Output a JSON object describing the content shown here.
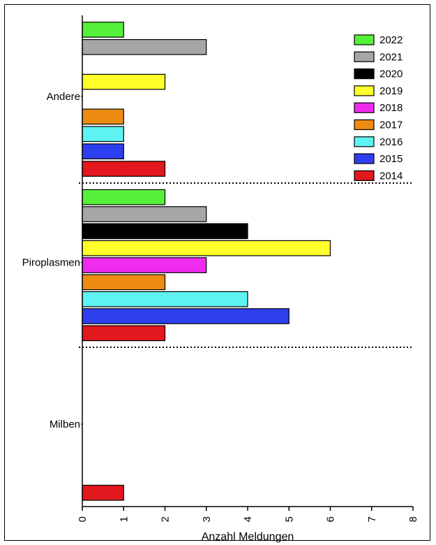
{
  "chart_data": {
    "type": "bar",
    "orientation": "horizontal",
    "title": "",
    "xlabel": "Anzahl Meldungen",
    "ylabel": "",
    "xlim": [
      0,
      8
    ],
    "xticks": [
      0,
      1,
      2,
      3,
      4,
      5,
      6,
      7,
      8
    ],
    "grid": false,
    "legend_position": "top-right",
    "categories": [
      "Andere",
      "Piroplasmen",
      "Milben"
    ],
    "series": [
      {
        "name": "2022",
        "color": "#55f03a",
        "values": [
          1,
          2,
          0
        ]
      },
      {
        "name": "2021",
        "color": "#a6a6a6",
        "values": [
          3,
          3,
          0
        ]
      },
      {
        "name": "2020",
        "color": "#000000",
        "values": [
          0,
          4,
          0
        ]
      },
      {
        "name": "2019",
        "color": "#ffff2a",
        "values": [
          2,
          6,
          0
        ]
      },
      {
        "name": "2018",
        "color": "#ee2bee",
        "values": [
          0,
          3,
          0
        ]
      },
      {
        "name": "2017",
        "color": "#ee8c12",
        "values": [
          1,
          2,
          0
        ]
      },
      {
        "name": "2016",
        "color": "#5ff2f2",
        "values": [
          1,
          4,
          0
        ]
      },
      {
        "name": "2015",
        "color": "#2e3ff0",
        "values": [
          1,
          5,
          0
        ]
      },
      {
        "name": "2014",
        "color": "#e3171e",
        "values": [
          2,
          2,
          1
        ]
      }
    ]
  }
}
